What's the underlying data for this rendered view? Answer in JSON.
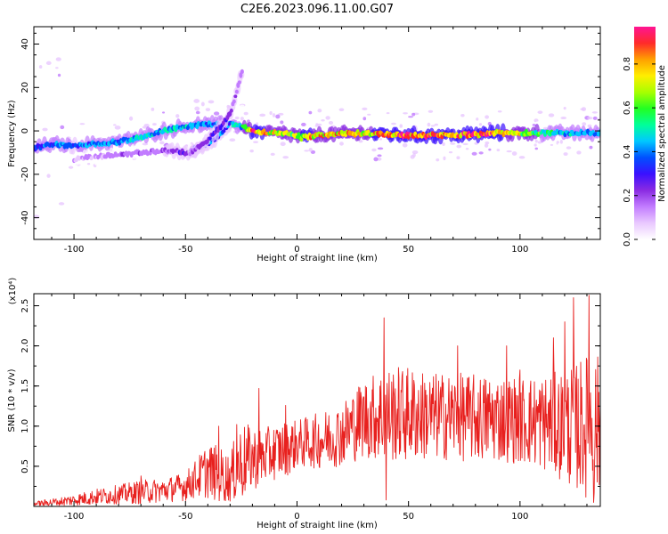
{
  "title": "C2E6.2023.096.11.00.G07",
  "colors": {
    "snr_line": "#e8201e",
    "axis": "#000000",
    "colormap": [
      "#ffffff",
      "#e9c8ff",
      "#c27cff",
      "#8a2be2",
      "#3a10ff",
      "#0050ff",
      "#00c8ff",
      "#00ff9a",
      "#22ff22",
      "#a8ff00",
      "#ffee00",
      "#ffa000",
      "#ff2a2a",
      "#ff1493"
    ]
  },
  "chart_data": [
    {
      "type": "heatmap",
      "xlabel": "Height of straight line (km)",
      "ylabel": "Frequency (Hz)",
      "xlim": [
        -118,
        136
      ],
      "ylim": [
        -50,
        48
      ],
      "x_ticks": [
        -100,
        -50,
        0,
        50,
        100
      ],
      "x_tick_labels": [
        "-100",
        "-50",
        "0",
        "50",
        "100"
      ],
      "y_ticks": [
        40,
        20,
        0,
        -20,
        -40
      ],
      "y_tick_labels": [
        "40",
        "20",
        "0",
        "-20",
        "-40"
      ],
      "colorbar": {
        "label": "Normalized spectral amplitude",
        "range": [
          0,
          0.97
        ],
        "ticks": [
          0.0,
          0.2,
          0.4,
          0.6,
          0.8
        ],
        "tick_labels": [
          "0.0",
          "0.2",
          "0.4",
          "0.6",
          "0.8"
        ]
      },
      "tracks": [
        {
          "name": "main",
          "x": [
            -118,
            -110,
            -100,
            -90,
            -80,
            -70,
            -60,
            -50,
            -40,
            -30,
            -25,
            -20,
            -10,
            0,
            2,
            10,
            30,
            50,
            70,
            90,
            110,
            120,
            136
          ],
          "y": [
            -8,
            -6,
            -7,
            -6,
            -5,
            -3,
            0,
            2,
            3,
            3,
            2,
            0,
            -1,
            -2,
            -3,
            -2,
            -1,
            -2,
            -2,
            -1,
            -1,
            -1,
            -1
          ],
          "amplitude": [
            0.4,
            0.45,
            0.4,
            0.45,
            0.45,
            0.5,
            0.5,
            0.5,
            0.45,
            0.5,
            0.55,
            0.9,
            0.75,
            0.7,
            0.85,
            0.8,
            0.8,
            0.9,
            0.9,
            0.85,
            0.6,
            0.5,
            0.45
          ]
        },
        {
          "name": "rising-branch-1",
          "x": [
            -100,
            -90,
            -80,
            -70,
            -60,
            -50,
            -45,
            -40,
            -35,
            -30
          ],
          "y": [
            -13,
            -12,
            -11,
            -10,
            -9,
            -10,
            -8,
            -6,
            -2,
            3
          ],
          "amplitude": [
            0.15,
            0.15,
            0.2,
            0.2,
            0.2,
            0.3,
            0.4,
            0.4,
            0.4,
            0.4
          ]
        },
        {
          "name": "rising-branch-2",
          "x": [
            -48,
            -42,
            -38,
            -34,
            -30,
            -27,
            -24
          ],
          "y": [
            -10,
            -6,
            -2,
            2,
            8,
            18,
            30
          ],
          "amplitude": [
            0.2,
            0.25,
            0.3,
            0.3,
            0.3,
            0.25,
            0.2
          ]
        }
      ]
    },
    {
      "type": "line",
      "xlabel": "Height of straight line (km)",
      "ylabel": "SNR (10 * v/v)",
      "y_scale_label": "(x10⁴)",
      "xlim": [
        -118,
        136
      ],
      "ylim": [
        0,
        2.65
      ],
      "x_ticks": [
        -100,
        -50,
        0,
        50,
        100
      ],
      "x_tick_labels": [
        "-100",
        "-50",
        "0",
        "50",
        "100"
      ],
      "y_ticks": [
        0.5,
        1.0,
        1.5,
        2.0,
        2.5
      ],
      "y_tick_labels": [
        "0.5",
        "1.0",
        "1.5",
        "2.0",
        "2.5"
      ],
      "series": [
        {
          "color": "#e8201e",
          "envelope_x": [
            -118,
            -110,
            -100,
            -90,
            -80,
            -70,
            -60,
            -50,
            -45,
            -40,
            -35,
            -30,
            -27,
            -25,
            -20,
            -15,
            -10,
            -5,
            0,
            10,
            20,
            25,
            30,
            35,
            40,
            50,
            60,
            70,
            80,
            90,
            100,
            110,
            120,
            125,
            130,
            136
          ],
          "envelope_base": [
            0.03,
            0.05,
            0.08,
            0.12,
            0.15,
            0.18,
            0.2,
            0.25,
            0.35,
            0.45,
            0.4,
            0.35,
            0.5,
            0.55,
            0.6,
            0.62,
            0.68,
            0.72,
            0.78,
            0.82,
            0.9,
            1.0,
            1.1,
            1.12,
            1.15,
            1.15,
            1.12,
            1.12,
            1.1,
            1.1,
            1.08,
            1.05,
            1.0,
            1.0,
            1.0,
            1.0
          ],
          "envelope_amp": [
            0.03,
            0.05,
            0.07,
            0.1,
            0.12,
            0.15,
            0.15,
            0.18,
            0.25,
            0.35,
            0.35,
            0.3,
            0.45,
            0.5,
            0.4,
            0.35,
            0.35,
            0.35,
            0.3,
            0.35,
            0.4,
            0.45,
            0.5,
            0.55,
            0.6,
            0.6,
            0.55,
            0.55,
            0.55,
            0.55,
            0.55,
            0.6,
            0.7,
            0.8,
            0.9,
            0.9
          ],
          "spikes": [
            {
              "x": -70,
              "y": 0.38
            },
            {
              "x": -35,
              "y": 1.0
            },
            {
              "x": -27,
              "y": 1.02
            },
            {
              "x": -17,
              "y": 1.47
            },
            {
              "x": -5,
              "y": 1.26
            },
            {
              "x": 25,
              "y": 1.32
            },
            {
              "x": 39,
              "y": 2.35
            },
            {
              "x": 40,
              "y": 0.08
            },
            {
              "x": 72,
              "y": 2.0
            },
            {
              "x": 94,
              "y": 2.0
            },
            {
              "x": 100,
              "y": 1.7
            },
            {
              "x": 115,
              "y": 2.1
            },
            {
              "x": 120,
              "y": 2.3
            },
            {
              "x": 124,
              "y": 2.6
            },
            {
              "x": 131,
              "y": 2.63
            },
            {
              "x": 133,
              "y": 0.05
            }
          ]
        }
      ]
    }
  ]
}
